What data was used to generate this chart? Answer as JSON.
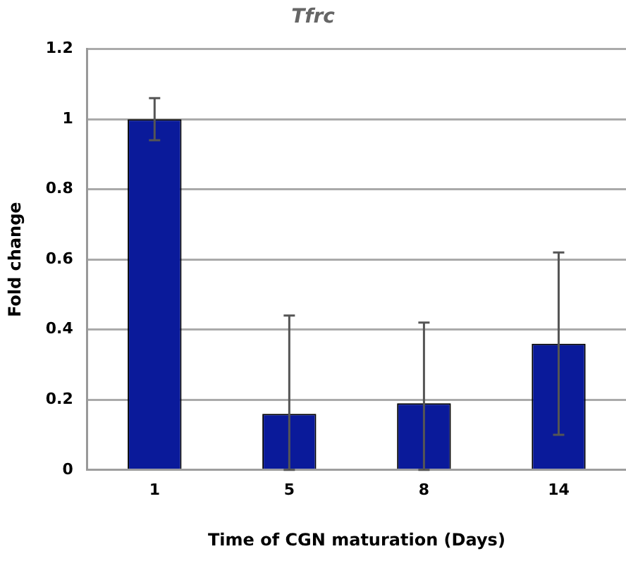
{
  "chart_data": {
    "type": "bar",
    "title": "Tfrc",
    "xlabel": "Time of CGN maturation (Days)",
    "ylabel": "Fold change",
    "categories": [
      "1",
      "5",
      "8",
      "14"
    ],
    "values": [
      1.0,
      0.16,
      0.19,
      0.36
    ],
    "color": "#0a1a9a",
    "errors": [
      [
        0.94,
        1.06
      ],
      [
        0,
        0.44
      ],
      [
        0,
        0.42
      ],
      [
        0.1,
        0.62
      ]
    ],
    "ylim": [
      0,
      1.2
    ],
    "yticks": [
      0,
      0.2,
      0.4,
      0.6,
      0.8,
      1,
      1.2
    ],
    "grid": "y",
    "legend": false
  }
}
